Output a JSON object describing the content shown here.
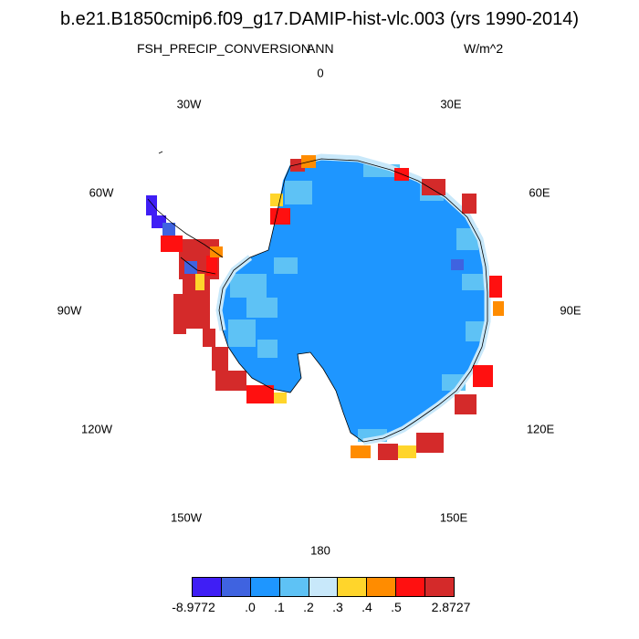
{
  "header": {
    "title": "b.e21.B1850cmip6.f09_g17.DAMIP-hist-vlc.003 (yrs 1990-2014)",
    "variable": "FSH_PRECIP_CONVERSION",
    "season": "ANN",
    "units": "W/m^2"
  },
  "longitude_labels": {
    "lon_0": "0",
    "lon_30e": "30E",
    "lon_60e": "60E",
    "lon_90e": "90E",
    "lon_120e": "120E",
    "lon_150e": "150E",
    "lon_180": "180",
    "lon_150w": "150W",
    "lon_120w": "120W",
    "lon_90w": "90W",
    "lon_60w": "60W",
    "lon_30w": "30W"
  },
  "colorbar": {
    "colors": [
      "#3f1ef5",
      "#3f63e0",
      "#1e96ff",
      "#5ec2f5",
      "#c8e8fa",
      "#ffd52b",
      "#ff8c00",
      "#ff1010",
      "#d42a2a"
    ],
    "labels": {
      "min": "-8.9772",
      "l0": ".0",
      "l1": ".1",
      "l2": ".2",
      "l3": ".3",
      "l4": ".4",
      "l5": ".5",
      "max": "2.8727"
    }
  }
}
